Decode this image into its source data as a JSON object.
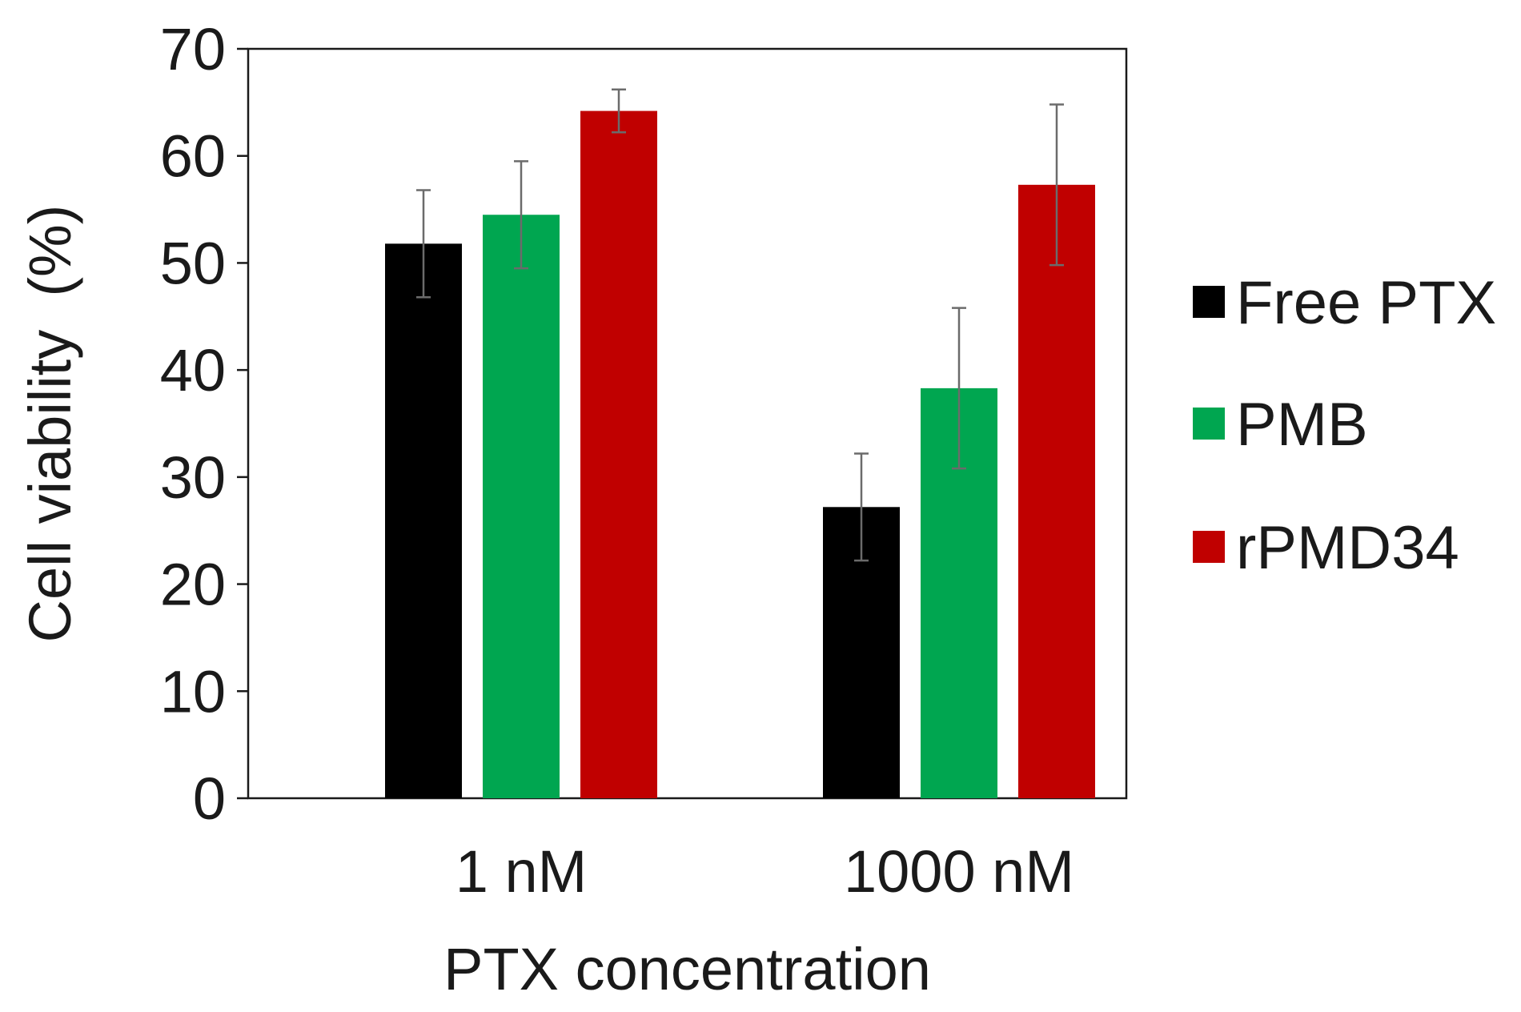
{
  "chart_data": {
    "type": "bar",
    "title": "",
    "xlabel": "PTX concentration",
    "ylabel": "Cell viability  (%)",
    "ylim": [
      0,
      70
    ],
    "yticks": [
      0,
      10,
      20,
      30,
      40,
      50,
      60,
      70
    ],
    "categories": [
      "1 nM",
      "1000 nM"
    ],
    "series": [
      {
        "name": "Free PTX",
        "color": "#000000",
        "values": [
          51.8,
          27.2
        ],
        "errors": [
          5.0,
          5.0
        ]
      },
      {
        "name": "PMB",
        "color": "#00a650",
        "values": [
          54.5,
          38.3
        ],
        "errors": [
          5.0,
          7.5
        ]
      },
      {
        "name": "rPMD34",
        "color": "#c00000",
        "values": [
          64.2,
          57.3
        ],
        "errors": [
          2.0,
          7.5
        ]
      }
    ],
    "legend_position": "right",
    "grid": false
  }
}
